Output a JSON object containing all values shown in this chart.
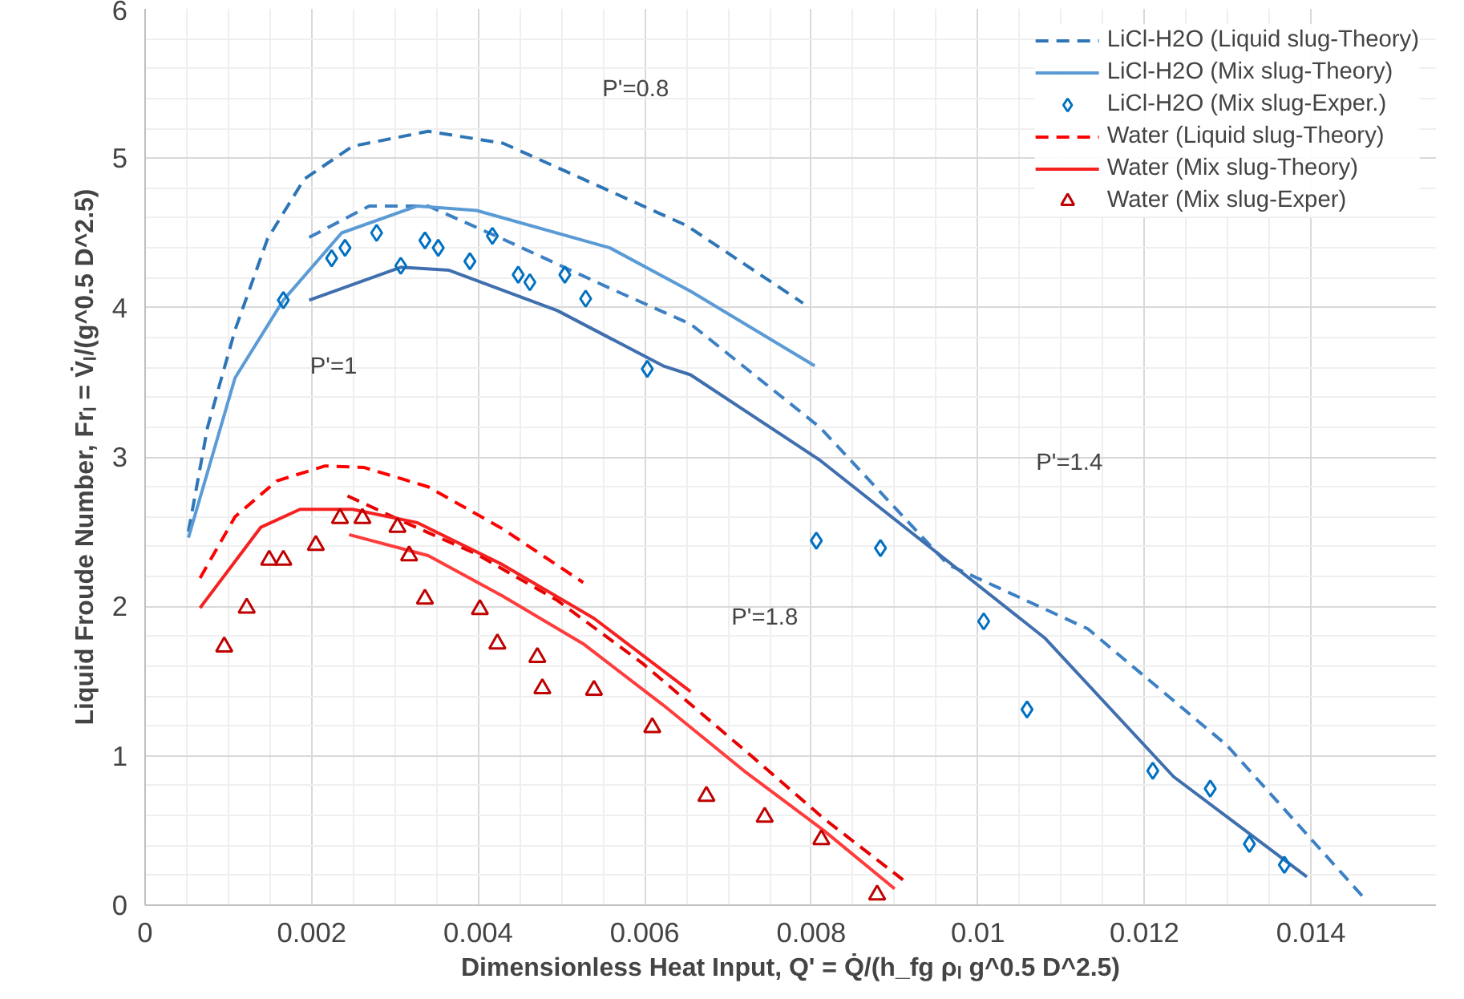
{
  "chart_data": {
    "type": "line",
    "xlabel": "Dimensionless Heat Input, Q' = Q̇/(h_fg ρₗ g^0.5 D^2.5)",
    "ylabel": "Liquid Froude Number, Frₗ = V̇ₗ/(g^0.5 D^2.5)",
    "xlim": [
      0,
      0.0155
    ],
    "xticks": [
      0,
      0.002,
      0.004,
      0.006,
      0.008,
      0.01,
      0.012,
      0.014
    ],
    "ylim": [
      0,
      6
    ],
    "yticks": [
      0,
      1,
      2,
      3,
      4,
      5,
      6
    ],
    "grid": true,
    "legend": "top right",
    "series": [
      {
        "name": "LiCl-H2O (Liquid slug-Theory)",
        "line_style": "dashed",
        "color": "#2e75b6",
        "x": [
          0.00052,
          0.00075,
          0.00108,
          0.00147,
          0.00191,
          0.00249,
          0.0034,
          0.0043,
          0.00526,
          0.0065,
          0.0079
        ],
        "values": [
          2.5,
          3.2,
          3.85,
          4.46,
          4.86,
          5.08,
          5.18,
          5.1,
          4.86,
          4.55,
          4.03
        ]
      },
      {
        "line_style": "dashed",
        "color": "#3d80c4",
        "x": [
          0.00197,
          0.00269,
          0.0034,
          0.00429,
          0.00558,
          0.00655,
          0.0081,
          0.00964,
          0.01132,
          0.01299,
          0.01465
        ],
        "values": [
          4.47,
          4.68,
          4.68,
          4.46,
          4.13,
          3.89,
          3.2,
          2.28,
          1.85,
          1.07,
          0.04
        ]
      },
      {
        "name": "LiCl-H2O (Mix slug-Theory)",
        "line_style": "solid",
        "color": "#5b9bd5",
        "x": [
          0.00052,
          0.00108,
          0.00166,
          0.00236,
          0.00327,
          0.00398,
          0.00558,
          0.00655,
          0.00804
        ],
        "values": [
          2.46,
          3.53,
          4.05,
          4.5,
          4.68,
          4.65,
          4.4,
          4.11,
          3.61
        ]
      },
      {
        "line_style": "solid",
        "color": "#3f6fae",
        "x": [
          0.00197,
          0.00307,
          0.00365,
          0.00495,
          0.00622,
          0.00655,
          0.0081,
          0.0108,
          0.01235,
          0.01395
        ],
        "values": [
          4.05,
          4.27,
          4.25,
          3.98,
          3.61,
          3.55,
          2.98,
          1.79,
          0.86,
          0.19
        ]
      },
      {
        "name": "LiCl-H2O (Mix slug-Exper.)",
        "type": "scatter",
        "marker": "diamond",
        "color": "#0070c0",
        "x": [
          0.00166,
          0.00224,
          0.0024,
          0.00278,
          0.00307,
          0.00336,
          0.00352,
          0.0039,
          0.00417,
          0.00448,
          0.00462,
          0.00504,
          0.00529,
          0.00603,
          0.00806,
          0.00883,
          0.01007,
          0.01059,
          0.0121,
          0.01279,
          0.01326,
          0.01368
        ],
        "values": [
          4.05,
          4.33,
          4.4,
          4.5,
          4.28,
          4.45,
          4.4,
          4.31,
          4.48,
          4.22,
          4.17,
          4.22,
          4.06,
          3.59,
          2.44,
          2.39,
          1.9,
          1.31,
          0.9,
          0.78,
          0.41,
          0.27
        ]
      },
      {
        "name": "Water (Liquid slug-Theory)",
        "line_style": "dashed",
        "color": "#ff0000",
        "x": [
          0.00066,
          0.00108,
          0.00158,
          0.00216,
          0.00263,
          0.0034,
          0.00429,
          0.00526
        ],
        "values": [
          2.19,
          2.6,
          2.84,
          2.94,
          2.93,
          2.8,
          2.52,
          2.16
        ]
      },
      {
        "line_style": "dashed",
        "color": "#e60000",
        "x": [
          0.00243,
          0.00313,
          0.00398,
          0.00495,
          0.00597,
          0.00732,
          0.00815,
          0.0091
        ],
        "values": [
          2.74,
          2.56,
          2.35,
          2.04,
          1.62,
          0.98,
          0.58,
          0.17
        ]
      },
      {
        "name": "Water (Mix slug-Theory)",
        "line_style": "solid",
        "color": "#f52020",
        "x": [
          0.00066,
          0.00139,
          0.00186,
          0.00249,
          0.00327,
          0.00429,
          0.00539,
          0.00655
        ],
        "values": [
          1.99,
          2.53,
          2.65,
          2.65,
          2.56,
          2.28,
          1.92,
          1.43
        ]
      },
      {
        "line_style": "solid",
        "color": "#ff3c3c",
        "x": [
          0.00245,
          0.0034,
          0.00429,
          0.00526,
          0.00622,
          0.00719,
          0.00815,
          0.009
        ],
        "values": [
          2.48,
          2.34,
          2.07,
          1.75,
          1.34,
          0.9,
          0.5,
          0.11
        ]
      },
      {
        "name": "Water (Mix slug-Exper)",
        "type": "scatter",
        "marker": "triangle",
        "color": "#c00000",
        "x": [
          0.00095,
          0.00122,
          0.00149,
          0.00166,
          0.00205,
          0.00234,
          0.00261,
          0.00303,
          0.00317,
          0.00336,
          0.00402,
          0.00423,
          0.00471,
          0.00477,
          0.00539,
          0.00609,
          0.00674,
          0.00744,
          0.00812,
          0.00879
        ],
        "values": [
          1.73,
          1.99,
          2.31,
          2.31,
          2.41,
          2.59,
          2.59,
          2.53,
          2.34,
          2.05,
          1.98,
          1.75,
          1.66,
          1.45,
          1.44,
          1.19,
          0.73,
          0.59,
          0.44,
          0.07
        ]
      }
    ],
    "annotations": [
      "P'=0.8",
      "P'=1",
      "P'=1.4",
      "P'=1.8"
    ]
  }
}
